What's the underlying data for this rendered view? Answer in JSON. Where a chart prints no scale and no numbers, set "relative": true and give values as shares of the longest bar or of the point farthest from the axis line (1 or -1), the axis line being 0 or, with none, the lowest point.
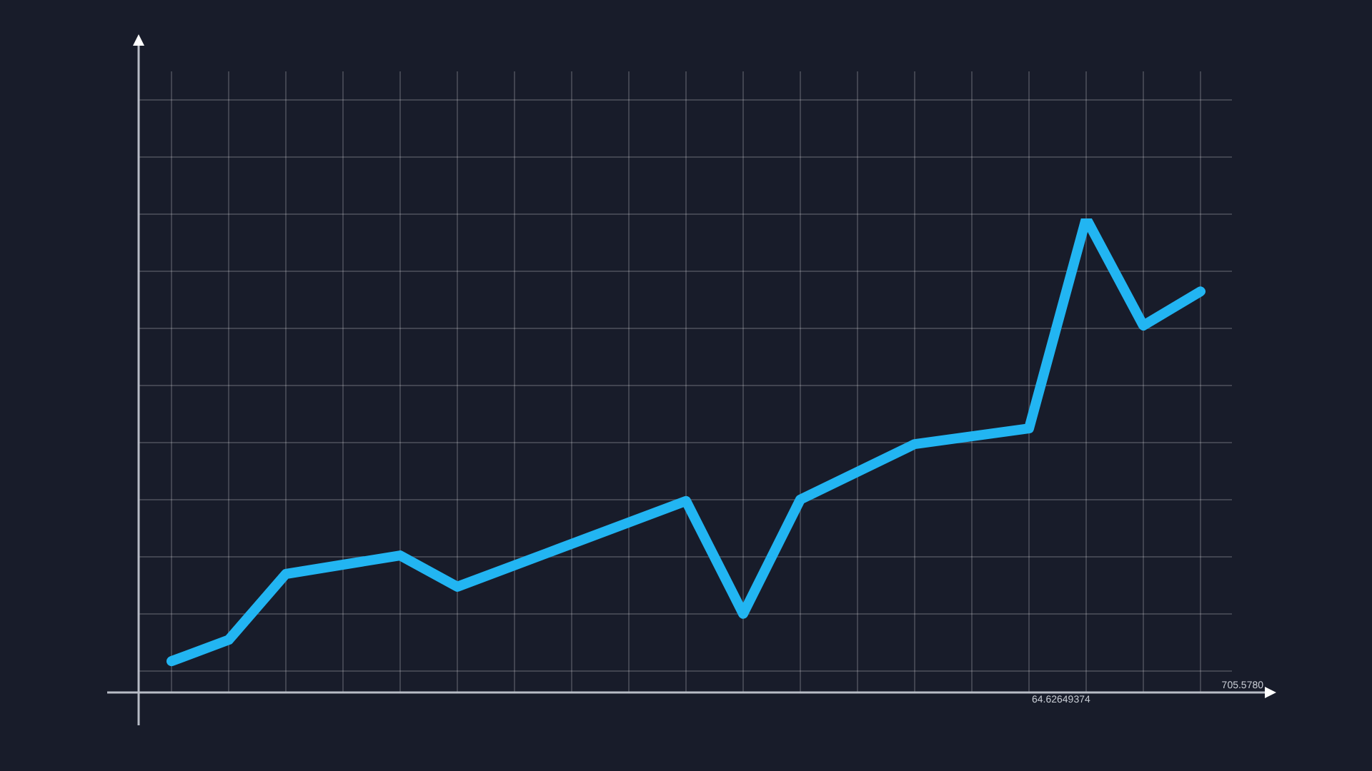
{
  "chart_data": {
    "type": "line",
    "relative": true,
    "categories": [
      null,
      null,
      null,
      null,
      null,
      null,
      null,
      null,
      null,
      null,
      null,
      null,
      null,
      null,
      null,
      null,
      null,
      null,
      null
    ],
    "series": [
      {
        "color": "#22b5f2",
        "values": [
          0.066,
          0.111,
          0.25,
          null,
          0.289,
          0.223,
          null,
          null,
          null,
          0.404,
          0.166,
          0.407,
          null,
          0.524,
          null,
          0.557,
          1,
          0.774,
          0.846
        ]
      }
    ],
    "annotations": [
      "64.62649374",
      "705.5780"
    ],
    "grid": true,
    "legend": false,
    "marker": "none",
    "line_style": "solid",
    "tick_labels": false
  }
}
